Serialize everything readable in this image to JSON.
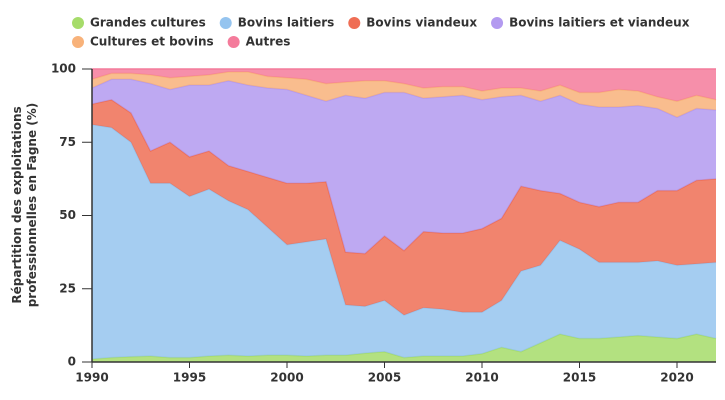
{
  "chart_data": {
    "type": "stacked-area",
    "y_label": "Répartition des exploitations professionnelles en Fagne (%)",
    "x": [
      1990,
      1991,
      1992,
      1993,
      1994,
      1995,
      1996,
      1997,
      1998,
      1999,
      2000,
      2001,
      2002,
      2003,
      2004,
      2005,
      2006,
      2007,
      2008,
      2009,
      2010,
      2011,
      2012,
      2013,
      2014,
      2015,
      2016,
      2017,
      2018,
      2019,
      2020,
      2021,
      2022
    ],
    "xlim": [
      1990,
      2022
    ],
    "xticks": [
      1990,
      1995,
      2000,
      2005,
      2010,
      2015,
      2020
    ],
    "ylim": [
      0,
      100
    ],
    "yticks": [
      0,
      25,
      50,
      75,
      100
    ],
    "legend": "top",
    "series": [
      {
        "name": "Grandes cultures",
        "color": "#a6dc6a",
        "values": [
          1,
          1.5,
          1.8,
          2,
          1.5,
          1.5,
          2,
          2.3,
          2,
          2.3,
          2.3,
          2,
          2.3,
          2.3,
          3,
          3.5,
          1.5,
          2,
          2,
          2,
          2.8,
          5,
          3.5,
          6.5,
          9.5,
          8,
          8,
          8.5,
          9,
          8.5,
          8,
          9.5,
          8
        ]
      },
      {
        "name": "Bovins laitiers",
        "color": "#95c4ef",
        "values": [
          80,
          78.5,
          73.2,
          59,
          59.5,
          55,
          57,
          52.7,
          50,
          43.7,
          37.7,
          39,
          39.7,
          17.2,
          16,
          17.5,
          14.5,
          16.5,
          16,
          15,
          14.2,
          16,
          27.5,
          26.5,
          32,
          30.5,
          26,
          25.5,
          25,
          26,
          25,
          24,
          26
        ]
      },
      {
        "name": "Bovins viandeux",
        "color": "#ef6e55",
        "values": [
          7,
          9.5,
          10,
          11,
          14,
          13.5,
          13,
          12,
          13,
          17,
          21,
          20,
          19.5,
          18,
          18,
          22,
          22,
          26,
          26,
          27,
          28.5,
          28,
          29,
          25.5,
          16,
          16,
          19,
          20.5,
          20.5,
          24,
          25.5,
          28.5,
          28.5
        ]
      },
      {
        "name": "Bovins laitiers et viandeux",
        "color": "#b39af0",
        "values": [
          5.5,
          7,
          11.5,
          23,
          18,
          24.5,
          22.5,
          29,
          29.5,
          30.5,
          32,
          30,
          27.5,
          53.5,
          53,
          49,
          54,
          45.5,
          46.5,
          47,
          44,
          41.5,
          31,
          30.5,
          33.5,
          33.5,
          34,
          32.5,
          33,
          28,
          25,
          24.5,
          23.5
        ]
      },
      {
        "name": "Cultures et bovins",
        "color": "#f8b27a",
        "values": [
          3,
          2,
          2,
          3,
          4,
          3,
          3.5,
          3,
          4.5,
          4,
          4,
          5.5,
          6,
          4.5,
          6,
          4,
          3,
          3.5,
          3.5,
          3,
          3,
          3,
          2.5,
          3.5,
          3.5,
          4,
          5,
          6,
          5,
          4,
          5.5,
          4.5,
          3.5
        ]
      },
      {
        "name": "Autres",
        "color": "#f47b9b",
        "values": [
          3.5,
          1.5,
          1.5,
          2,
          3,
          2.5,
          2,
          1,
          1,
          2.5,
          3,
          3.5,
          5,
          4.5,
          4,
          4,
          5,
          6.5,
          6,
          6,
          7.5,
          6.5,
          6.5,
          7.5,
          5.5,
          8,
          8,
          7,
          7.5,
          9.5,
          11,
          9,
          10.5
        ]
      }
    ]
  }
}
